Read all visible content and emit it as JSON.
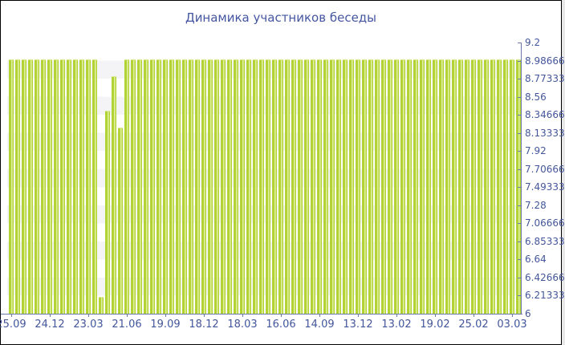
{
  "window": {
    "background_color": "#ffffff",
    "border_color": "#000000"
  },
  "chart_data": {
    "type": "bar",
    "title": "Динамика участников беседы",
    "title_color": "#4456a0",
    "bar_color": "#b1d334",
    "axis_color": "#6b7aa8",
    "label_color": "#44569b",
    "grid_band_color": "#f4f4f6",
    "legend": "none",
    "ylim": [
      6,
      9.2
    ],
    "y_tick_labels": [
      "9.2",
      "8.98666",
      "8.77333",
      "8.56",
      "8.34666",
      "8.13333",
      "7.92",
      "7.70666",
      "7.49333",
      "7.28",
      "7.06666",
      "6.85333",
      "6.64",
      "6.42666",
      "6.21333",
      "6"
    ],
    "y_tick_values": [
      9.2,
      8.98666,
      8.77333,
      8.56,
      8.34666,
      8.13333,
      7.92,
      7.70666,
      7.49333,
      7.28,
      7.06666,
      6.85333,
      6.64,
      6.42666,
      6.21333,
      6
    ],
    "x_tick_labels": [
      "25.09",
      "24.12",
      "23.03",
      "21.06",
      "19.09",
      "18.12",
      "18.03",
      "16.06",
      "14.09",
      "13.12",
      "13.02",
      "19.02",
      "25.02",
      "03.03"
    ],
    "x_tick_every_n_bars": 6,
    "values": [
      9,
      9,
      9,
      9,
      9,
      9,
      9,
      9,
      9,
      9,
      9,
      9,
      9,
      9,
      6.2,
      8.4,
      8.8,
      8.2,
      9,
      9,
      9,
      9,
      9,
      9,
      9,
      9,
      9,
      9,
      9,
      9,
      9,
      9,
      9,
      9,
      9,
      9,
      9,
      9,
      9,
      9,
      9,
      9,
      9,
      9,
      9,
      9,
      9,
      9,
      9,
      9,
      9,
      9,
      9,
      9,
      9,
      9,
      9,
      9,
      9,
      9,
      9,
      9,
      9,
      9,
      9,
      9,
      9,
      9,
      9,
      9,
      9,
      9,
      9,
      9,
      9,
      9,
      9,
      9,
      9,
      9
    ]
  }
}
